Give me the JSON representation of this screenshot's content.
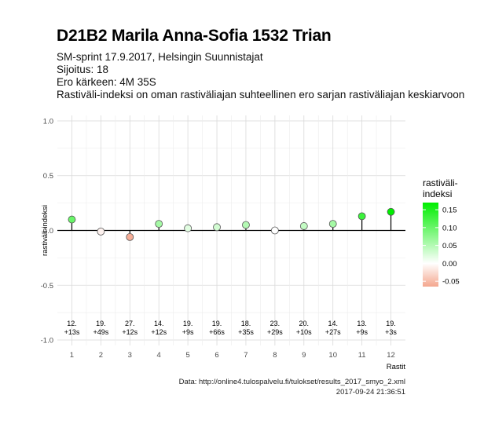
{
  "header": {
    "title": "D21B2 Marila Anna-Sofia 1532 Trian",
    "line1": "SM-sprint 17.9.2017, Helsingin Suunnistajat",
    "line2": "Sijoitus: 18",
    "line3": "Ero kärkeen: 4M 35S",
    "line4": "Rastiväli-indeksi on oman rastiväliajan suhteellinen ero sarjan rastiväliajan keskiarvoon"
  },
  "caption": {
    "source": "Data: http://online4.tulospalvelu.fi/tulokset/results_2017_smyo_2.xml",
    "timestamp": "2017-09-24 21:36:51"
  },
  "chart_data": {
    "type": "scatter",
    "xlabel": "Rastit",
    "ylabel": "rastiväli-indeksi",
    "x": [
      1,
      2,
      3,
      4,
      5,
      6,
      7,
      8,
      9,
      10,
      11,
      12
    ],
    "y": [
      0.1,
      -0.01,
      -0.06,
      0.06,
      0.02,
      0.03,
      0.05,
      0.0,
      0.04,
      0.06,
      0.13,
      0.17
    ],
    "ylim": [
      -1.05,
      1.05
    ],
    "yticks": [
      -1.0,
      -0.5,
      0.0,
      0.5,
      1.0
    ],
    "ytick_labels": [
      "-1.0",
      "-0.5",
      "0.0",
      "0.5",
      "1.0"
    ],
    "xlim": [
      0.5,
      12.5
    ],
    "point_labels_rank": [
      "12.",
      "19.",
      "27.",
      "14.",
      "19.",
      "19.",
      "18.",
      "23.",
      "20.",
      "14.",
      "13.",
      "19."
    ],
    "point_labels_diff": [
      "+13s",
      "+49s",
      "+12s",
      "+12s",
      "+9s",
      "+66s",
      "+35s",
      "+29s",
      "+10s",
      "+27s",
      "+9s",
      "+3s"
    ],
    "legend": {
      "title_line1": "rastiväli-",
      "title_line2": "indeksi",
      "ticks": [
        0.15,
        0.1,
        0.05,
        0.0,
        -0.05
      ],
      "tick_labels": [
        "0.15",
        "0.10",
        "0.05",
        "0.00",
        "-0.05"
      ],
      "range": [
        -0.065,
        0.17
      ],
      "position": "right"
    },
    "grid": true,
    "colors": {
      "low": "#f4a68e",
      "mid": "#ffffff",
      "high": "#00ee00"
    }
  }
}
